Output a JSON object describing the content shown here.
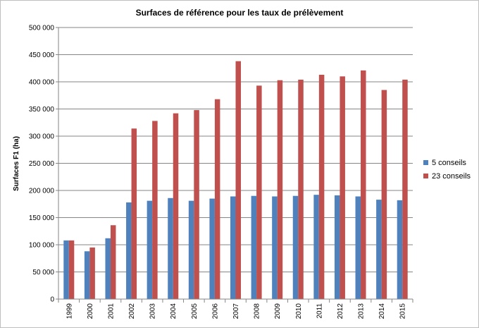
{
  "chart_data": {
    "type": "bar",
    "title": "Surfaces de référence pour les taux de prélèvement",
    "xlabel": "",
    "ylabel": "Surfaces F1 (ha)",
    "ylim": [
      0,
      500000
    ],
    "yticks": [
      "0",
      "50 000",
      "100 000",
      "150 000",
      "200 000",
      "250 000",
      "300 000",
      "350 000",
      "400 000",
      "450 000",
      "500 000"
    ],
    "grid": true,
    "legend_position": "right",
    "categories": [
      "1999",
      "2000",
      "2001",
      "2002",
      "2003",
      "2004",
      "2005",
      "2006",
      "2007",
      "2008",
      "2009",
      "2010",
      "2011",
      "2012",
      "2013",
      "2014",
      "2015"
    ],
    "series": [
      {
        "name": "5 conseils",
        "color": "#4f81bd",
        "values": [
          108000,
          88000,
          112000,
          178000,
          181000,
          186000,
          181000,
          185000,
          189000,
          190000,
          189000,
          190000,
          192000,
          191000,
          189000,
          183000,
          182000
        ]
      },
      {
        "name": "23 conseils",
        "color": "#c0504d",
        "values": [
          108000,
          95000,
          136000,
          314000,
          328000,
          342000,
          348000,
          368000,
          438000,
          393000,
          403000,
          404000,
          413000,
          410000,
          421000,
          385000,
          404000
        ]
      }
    ]
  }
}
